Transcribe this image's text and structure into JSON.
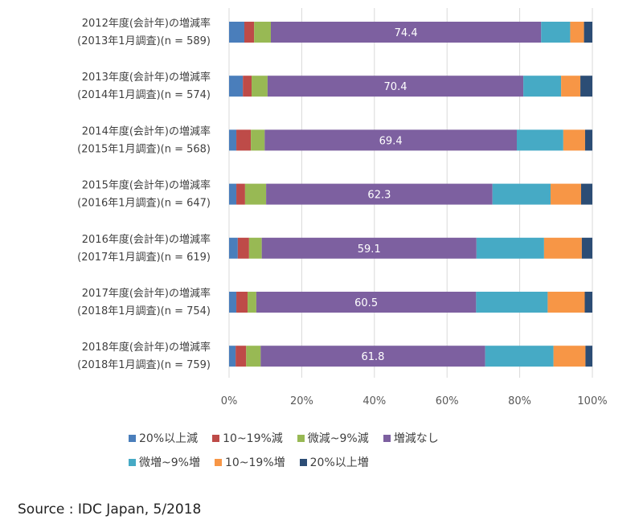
{
  "chart_data": {
    "type": "bar",
    "orientation": "horizontal",
    "stacked": "percent",
    "categories": [
      [
        "2012年度(会計年)の増減率",
        "(2013年1月調査)(n = 589)"
      ],
      [
        "2013年度(会計年)の増減率",
        "(2014年1月調査)(n = 574)"
      ],
      [
        "2014年度(会計年)の増減率",
        "(2015年1月調査)(n = 568)"
      ],
      [
        "2015年度(会計年)の増減率",
        "(2016年1月調査)(n = 647)"
      ],
      [
        "2016年度(会計年)の増減率",
        "(2017年1月調査)(n = 619)"
      ],
      [
        "2017年度(会計年)の増減率",
        "(2018年1月調査)(n = 754)"
      ],
      [
        "2018年度(会計年)の増減率",
        "(2018年1月調査)(n = 759)"
      ]
    ],
    "series": [
      {
        "name": "20%以上減",
        "color": "#4a7ebb",
        "values": [
          4.2,
          3.8,
          2.0,
          2.0,
          2.4,
          2.0,
          1.8
        ]
      },
      {
        "name": "10~19%減",
        "color": "#be4b48",
        "values": [
          2.7,
          2.4,
          4.0,
          2.4,
          3.1,
          3.1,
          2.9
        ]
      },
      {
        "name": "微減~9%減",
        "color": "#98b954",
        "values": [
          4.6,
          4.4,
          3.8,
          5.8,
          3.5,
          2.4,
          4.0
        ]
      },
      {
        "name": "増減なし",
        "color": "#7d60a0",
        "values": [
          74.4,
          70.4,
          69.4,
          62.3,
          59.1,
          60.5,
          61.8
        ],
        "labels": [
          "74.4",
          "70.4",
          "69.4",
          "62.3",
          "59.1",
          "60.5",
          "61.8"
        ]
      },
      {
        "name": "微増~9%増",
        "color": "#46aac5",
        "values": [
          8.0,
          10.4,
          12.8,
          16.0,
          18.6,
          19.7,
          18.8
        ]
      },
      {
        "name": "10~19%増",
        "color": "#f79646",
        "values": [
          3.8,
          5.3,
          6.0,
          8.4,
          10.4,
          10.2,
          8.8
        ]
      },
      {
        "name": "20%以上増",
        "color": "#2c4d75",
        "values": [
          2.3,
          3.3,
          2.0,
          3.1,
          2.9,
          2.1,
          1.9
        ]
      }
    ],
    "xlim": [
      0,
      100
    ],
    "xticks": [
      "0%",
      "20%",
      "40%",
      "60%",
      "80%",
      "100%"
    ],
    "grid": true,
    "legend": "bottom",
    "xlabel": "",
    "ylabel": "",
    "title": ""
  },
  "legend_rows": [
    [
      0,
      1,
      2,
      3
    ],
    [
      4,
      5,
      6
    ]
  ],
  "source": "Source : IDC Japan, 5/2018"
}
